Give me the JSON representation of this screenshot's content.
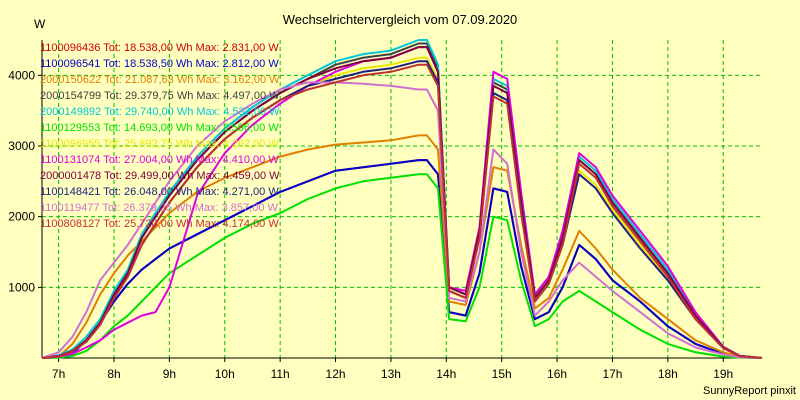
{
  "chart_data": {
    "type": "line",
    "title": "Wechselrichtervergleich vom 07.09.2020",
    "ylabel": "W",
    "xlabel": "",
    "footer": "SunnyReport pinxit",
    "grid": true,
    "legend_position": "top-left",
    "xlim": [
      6.7,
      19.7
    ],
    "ylim": [
      0,
      4500
    ],
    "x_ticks": [
      7,
      8,
      9,
      10,
      11,
      12,
      13,
      14,
      15,
      16,
      17,
      18,
      19
    ],
    "x_tick_labels": [
      "7h",
      "8h",
      "9h",
      "10h",
      "11h",
      "12h",
      "13h",
      "14h",
      "15h",
      "16h",
      "17h",
      "18h",
      "19h"
    ],
    "y_ticks": [
      1000,
      2000,
      3000,
      4000
    ],
    "y_tick_labels": [
      "1000",
      "2000",
      "3000",
      "4000"
    ],
    "x": [
      6.7,
      7.0,
      7.25,
      7.5,
      7.75,
      8.0,
      8.25,
      8.5,
      8.75,
      9.0,
      9.5,
      10.0,
      10.5,
      11.0,
      11.5,
      12.0,
      12.5,
      13.0,
      13.5,
      13.65,
      13.85,
      14.05,
      14.35,
      14.6,
      14.85,
      15.1,
      15.35,
      15.6,
      15.85,
      16.1,
      16.4,
      16.7,
      17.0,
      17.5,
      18.0,
      18.5,
      19.0,
      19.3,
      19.7
    ],
    "series": [
      {
        "name": "1100096436 Tot: 18.538,00 Wh Max: 2.831,00 W",
        "color": "#cc0000",
        "values": [
          0,
          10,
          60,
          250,
          500,
          800,
          1050,
          1250,
          1400,
          1550,
          1750,
          1950,
          2150,
          2350,
          2500,
          2650,
          2700,
          2750,
          2800,
          2800,
          2600,
          650,
          600,
          1200,
          2400,
          2350,
          1300,
          550,
          650,
          1000,
          1600,
          1400,
          1100,
          800,
          450,
          200,
          60,
          10,
          0
        ]
      },
      {
        "name": "1100096541 Tot: 18.538,50 Wh Max: 2.812,00 W",
        "color": "#0000cc",
        "values": [
          0,
          10,
          60,
          250,
          500,
          800,
          1050,
          1250,
          1400,
          1550,
          1750,
          1950,
          2150,
          2350,
          2500,
          2650,
          2700,
          2750,
          2800,
          2800,
          2600,
          650,
          600,
          1200,
          2400,
          2350,
          1300,
          550,
          650,
          1000,
          1600,
          1400,
          1100,
          800,
          450,
          200,
          60,
          10,
          0
        ]
      },
      {
        "name": "2000150622 Tot: 21.087,63 Wh Max: 3.162,00 W",
        "color": "#e08000",
        "values": [
          0,
          20,
          200,
          500,
          900,
          1200,
          1450,
          1650,
          1850,
          2050,
          2350,
          2550,
          2700,
          2850,
          2950,
          3020,
          3050,
          3080,
          3150,
          3150,
          2950,
          800,
          750,
          1500,
          2700,
          2650,
          1600,
          700,
          850,
          1250,
          1800,
          1550,
          1250,
          850,
          550,
          250,
          80,
          15,
          0
        ]
      },
      {
        "name": "2000154799 Tot: 29.379,75 Wh Max: 4.497,00 W",
        "color": "#404040",
        "values": [
          0,
          30,
          100,
          250,
          500,
          900,
          1200,
          1700,
          2000,
          2300,
          2800,
          3200,
          3500,
          3750,
          3950,
          4150,
          4250,
          4300,
          4450,
          4450,
          4100,
          1000,
          900,
          1800,
          3900,
          3800,
          2200,
          850,
          1100,
          1700,
          2800,
          2600,
          2200,
          1700,
          1200,
          600,
          150,
          30,
          0
        ]
      },
      {
        "name": "2000149892 Tot: 29.740,00 Wh Max: 4.532,00 W",
        "color": "#00c8d8",
        "values": [
          0,
          40,
          120,
          300,
          550,
          950,
          1250,
          1750,
          2050,
          2350,
          2850,
          3250,
          3550,
          3800,
          4000,
          4200,
          4300,
          4350,
          4500,
          4500,
          4150,
          1000,
          900,
          1800,
          3950,
          3850,
          2250,
          850,
          1100,
          1700,
          2850,
          2650,
          2250,
          1750,
          1250,
          600,
          150,
          30,
          0
        ]
      },
      {
        "name": "1100129553 Tot: 14.693,00 Wh Max: 2.596,00 W",
        "color": "#00e000",
        "values": [
          0,
          5,
          30,
          100,
          250,
          450,
          600,
          800,
          1000,
          1200,
          1450,
          1700,
          1900,
          2050,
          2250,
          2400,
          2500,
          2550,
          2600,
          2600,
          2400,
          550,
          520,
          1000,
          2000,
          1950,
          1100,
          450,
          550,
          800,
          950,
          800,
          650,
          400,
          200,
          80,
          20,
          5,
          0
        ]
      },
      {
        "name": "1100096955 Tot: 25.892,75 Wh Max: 4.262,00 W",
        "color": "#e8e800",
        "values": [
          0,
          25,
          90,
          230,
          470,
          850,
          1150,
          1600,
          1900,
          2200,
          2700,
          3100,
          3400,
          3650,
          3850,
          4000,
          4100,
          4150,
          4250,
          4250,
          3950,
          950,
          850,
          1700,
          3750,
          3650,
          2100,
          800,
          1050,
          1600,
          2650,
          2450,
          2100,
          1600,
          1100,
          550,
          140,
          25,
          0
        ]
      },
      {
        "name": "1100131074 Tot: 27.004,00 Wh Max: 4.410,00 W",
        "color": "#e000e0",
        "values": [
          0,
          20,
          60,
          150,
          250,
          400,
          500,
          600,
          650,
          1000,
          2300,
          2900,
          3300,
          3600,
          3850,
          4050,
          4200,
          4250,
          4400,
          4400,
          4050,
          1000,
          950,
          1850,
          4050,
          3950,
          2350,
          900,
          1150,
          1800,
          2900,
          2700,
          2300,
          1800,
          1300,
          650,
          160,
          30,
          0
        ]
      },
      {
        "name": "2000001478 Tot: 29.499,00 Wh Max: 4.459,00 W",
        "color": "#800040",
        "values": [
          0,
          30,
          100,
          250,
          500,
          900,
          1200,
          1700,
          2000,
          2300,
          2800,
          3200,
          3500,
          3750,
          3950,
          4100,
          4200,
          4250,
          4400,
          4400,
          4050,
          1000,
          900,
          1800,
          3850,
          3750,
          2200,
          850,
          1100,
          1700,
          2800,
          2600,
          2200,
          1700,
          1200,
          600,
          150,
          30,
          0
        ]
      },
      {
        "name": "1100148421 Tot: 26.048,00 Wh Max: 4.271,00 W",
        "color": "#202080",
        "values": [
          0,
          25,
          90,
          230,
          470,
          850,
          1150,
          1600,
          1900,
          2200,
          2700,
          3100,
          3400,
          3650,
          3850,
          3950,
          4050,
          4100,
          4200,
          4200,
          3900,
          950,
          850,
          1700,
          3750,
          3650,
          2100,
          800,
          1050,
          1600,
          2600,
          2400,
          2050,
          1550,
          1100,
          550,
          140,
          25,
          0
        ]
      },
      {
        "name": "1100119477 Tot: 26.379,25 Wh Max: 3.857,00 W",
        "color": "#d070d0",
        "values": [
          0,
          80,
          300,
          650,
          1100,
          1350,
          1600,
          1900,
          2200,
          2500,
          3000,
          3350,
          3600,
          3800,
          3900,
          3900,
          3880,
          3850,
          3800,
          3800,
          3500,
          850,
          800,
          1500,
          2950,
          2750,
          1500,
          600,
          800,
          1100,
          1350,
          1150,
          950,
          650,
          350,
          150,
          50,
          10,
          0
        ]
      },
      {
        "name": "1100808127 Tot: 25.720,00 Wh Max: 4.174,00 W",
        "color": "#c03030",
        "values": [
          0,
          25,
          90,
          230,
          470,
          850,
          1150,
          1600,
          1900,
          2200,
          2700,
          3100,
          3400,
          3650,
          3800,
          3900,
          4000,
          4050,
          4150,
          4150,
          3850,
          950,
          850,
          1700,
          3700,
          3600,
          2050,
          800,
          1050,
          1600,
          2750,
          2550,
          2150,
          1650,
          1150,
          550,
          140,
          25,
          0
        ]
      }
    ]
  }
}
